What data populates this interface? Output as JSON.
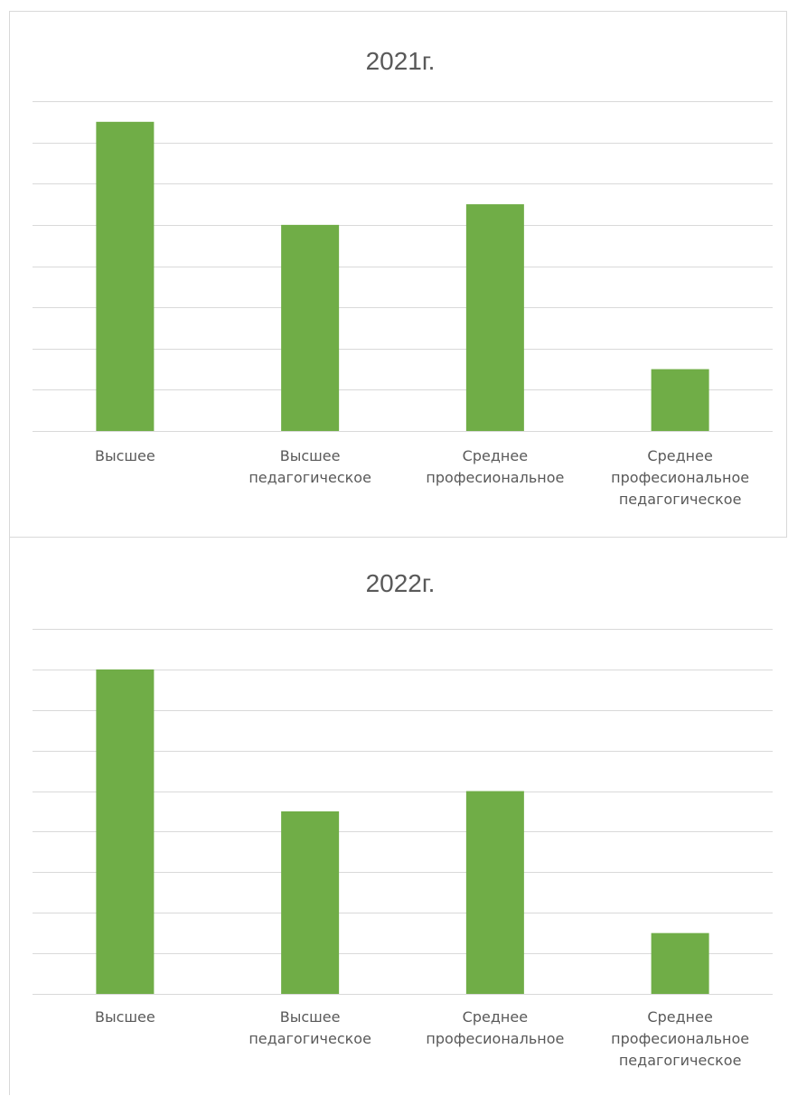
{
  "colors": {
    "bar": "#70ad47",
    "grid": "#d9d9d9",
    "text": "#595959"
  },
  "chart_data": [
    {
      "type": "bar",
      "title": "2021г.",
      "xlabel": "",
      "ylabel": "",
      "categories": [
        [
          "Высшее"
        ],
        [
          "Высшее",
          "педагогическое"
        ],
        [
          "Среднее",
          "професиональное"
        ],
        [
          "Среднее",
          "професиональное",
          "педагогическое"
        ]
      ],
      "series": [
        {
          "values": [
            15,
            10,
            11,
            3
          ]
        }
      ],
      "ylim": [
        0,
        16
      ],
      "y_gridline_step": 2,
      "grid": true,
      "legend": "none"
    },
    {
      "type": "bar",
      "title": "2022г.",
      "xlabel": "",
      "ylabel": "",
      "categories": [
        [
          "Высшее"
        ],
        [
          "Высшее",
          "педагогическое"
        ],
        [
          "Среднее",
          "професиональное"
        ],
        [
          "Среднее",
          "професиональное",
          "педагогическое"
        ]
      ],
      "series": [
        {
          "values": [
            16,
            9,
            10,
            3
          ]
        }
      ],
      "ylim": [
        0,
        18
      ],
      "y_gridline_step": 2,
      "grid": true,
      "legend": "none"
    }
  ]
}
